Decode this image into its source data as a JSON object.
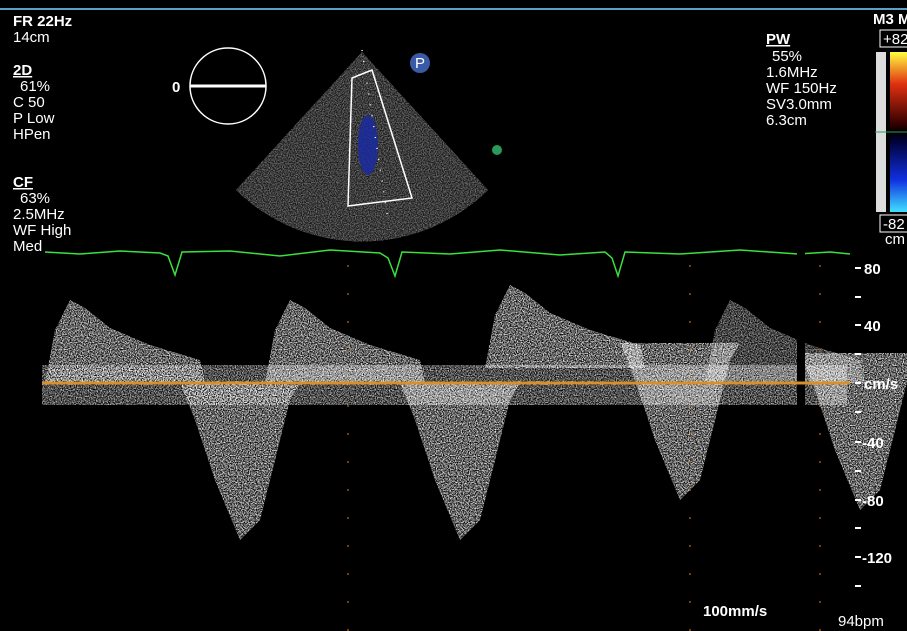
{
  "header": {
    "frame_rate": "FR 22Hz",
    "depth": "14cm"
  },
  "mode_2d": {
    "title": "2D",
    "gain": "61%",
    "compression": "C 50",
    "power": "P Low",
    "harmonic": "HPen"
  },
  "color_flow": {
    "title": "CF",
    "gain": "63%",
    "frequency": "2.5MHz",
    "wall_filter": "WF High",
    "setting": "Med"
  },
  "sector": {
    "angle_label": "0",
    "probe_marker": "P"
  },
  "pulsed_wave": {
    "title": "PW",
    "gain": "55%",
    "frequency": "1.6MHz",
    "wall_filter": "WF 150Hz",
    "sample_volume": "SV3.0mm",
    "gate_depth": "6.3cm"
  },
  "color_bar": {
    "mode": "M3 M",
    "max": "+82",
    "min": "-82",
    "unit": "cm"
  },
  "velocity_scale": {
    "labels": [
      "80",
      "40",
      "cm/s",
      "-40",
      "-80",
      "-120"
    ]
  },
  "footer": {
    "sweep_speed": "100mm/s",
    "heart_rate": "94bpm"
  }
}
